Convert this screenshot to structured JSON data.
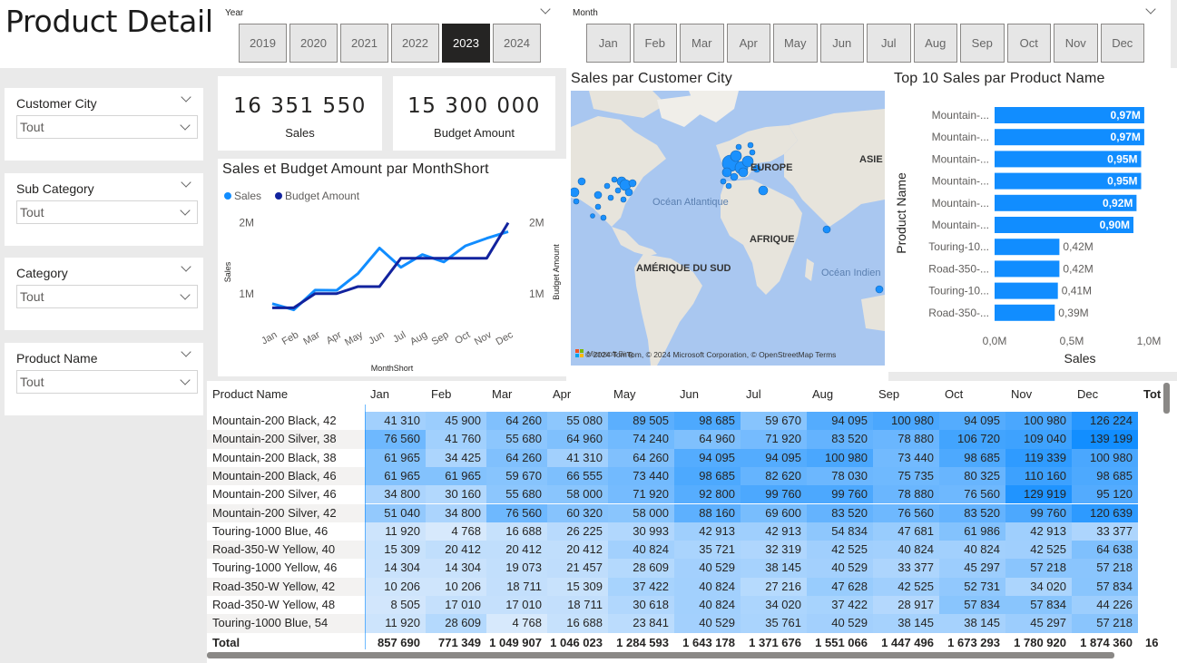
{
  "page": {
    "title": "Product Detail"
  },
  "year_slicer": {
    "title": "Year",
    "options": [
      "2019",
      "2020",
      "2021",
      "2022",
      "2023",
      "2024"
    ],
    "selected": "2023"
  },
  "month_slicer": {
    "title": "Month",
    "options": [
      "Jan",
      "Feb",
      "Mar",
      "Apr",
      "May",
      "Jun",
      "Jul",
      "Aug",
      "Sep",
      "Oct",
      "Nov",
      "Dec"
    ],
    "selected": ""
  },
  "filters": [
    {
      "label": "Customer City",
      "value": "Tout"
    },
    {
      "label": "Sub Category",
      "value": "Tout"
    },
    {
      "label": "Category",
      "value": "Tout"
    },
    {
      "label": "Product Name",
      "value": "Tout"
    }
  ],
  "kpis": [
    {
      "value": "16 351 550",
      "label": "Sales"
    },
    {
      "value": "15 300 000",
      "label": "Budget Amount"
    }
  ],
  "colors": {
    "sales": "#118dff",
    "budget": "#12239e",
    "selected_tile": "#252423",
    "bar": "#118dff"
  },
  "line_chart": {
    "title": "Sales et Budget Amount par MonthShort",
    "legend": [
      "Sales",
      "Budget Amount"
    ],
    "y_left_label": "Sales",
    "y_right_label": "Budget Amount",
    "x_label": "MonthShort",
    "y_ticks": [
      "2M",
      "1M"
    ],
    "y_ticks_right": [
      "2M",
      "1M"
    ]
  },
  "map": {
    "title": "Sales par Customer City",
    "labels": [
      "EUROPE",
      "ASIE",
      "AFRIQUE",
      "AMÉRIQUE DU SUD",
      "Océan Atlantique",
      "Océan Indien"
    ],
    "attribution": "© 2024 TomTom, © 2024 Microsoft Corporation, © OpenStreetMap  Terms",
    "brand": "Microsoft Bing"
  },
  "bar_chart": {
    "title": "Top 10 Sales par Product Name",
    "y_label": "Product Name",
    "x_label": "Sales",
    "x_ticks": [
      "0,0M",
      "0,5M",
      "1,0M"
    ],
    "value_labels": [
      "0,97M",
      "0,97M",
      "0,95M",
      "0,95M",
      "0,92M",
      "0,90M",
      "0,42M",
      "0,42M",
      "0,41M",
      "0,39M"
    ],
    "category_labels": [
      "Mountain-...",
      "Mountain-...",
      "Mountain-...",
      "Mountain-...",
      "Mountain-...",
      "Mountain-...",
      "Touring-10...",
      "Road-350-...",
      "Touring-10...",
      "Road-350-..."
    ]
  },
  "chart_data": [
    {
      "type": "line",
      "title": "Sales et Budget Amount par MonthShort",
      "xlabel": "MonthShort",
      "ylabel": "Sales",
      "ylabel_right": "Budget Amount",
      "categories": [
        "Jan",
        "Feb",
        "Mar",
        "Apr",
        "May",
        "Jun",
        "Jul",
        "Aug",
        "Sep",
        "Oct",
        "Nov",
        "Dec"
      ],
      "series": [
        {
          "name": "Sales",
          "values": [
            857690,
            771349,
            1049907,
            1046023,
            1284593,
            1643178,
            1371676,
            1551066,
            1447496,
            1673293,
            1780920,
            1874360
          ]
        },
        {
          "name": "Budget Amount",
          "values": [
            800000,
            800000,
            1000000,
            1000000,
            1100000,
            1100000,
            1500000,
            1500000,
            1500000,
            1500000,
            1500000,
            2000000
          ]
        }
      ],
      "ylim": [
        600000,
        2200000
      ],
      "legend_position": "top-left"
    },
    {
      "type": "bar",
      "title": "Top 10 Sales par Product Name",
      "xlabel": "Sales",
      "ylabel": "Product Name",
      "categories": [
        "Mountain-...",
        "Mountain-...",
        "Mountain-...",
        "Mountain-...",
        "Mountain-...",
        "Mountain-...",
        "Touring-10...",
        "Road-350-...",
        "Touring-10...",
        "Road-350-..."
      ],
      "values": [
        0.97,
        0.97,
        0.95,
        0.95,
        0.92,
        0.9,
        0.42,
        0.42,
        0.41,
        0.39
      ],
      "unit": "M",
      "xlim": [
        0,
        1.0
      ]
    }
  ],
  "table": {
    "columns": [
      "Product Name",
      "Jan",
      "Feb",
      "Mar",
      "Apr",
      "May",
      "Jun",
      "Jul",
      "Aug",
      "Sep",
      "Oct",
      "Nov",
      "Dec",
      "Tot"
    ],
    "rows": [
      {
        "name": "Mountain-200 Black, 42",
        "values": [
          "41 310",
          "45 900",
          "64 260",
          "55 080",
          "89 505",
          "98 685",
          "59 670",
          "94 095",
          "100 980",
          "94 095",
          "100 980",
          "126 224"
        ]
      },
      {
        "name": "Mountain-200 Silver, 38",
        "values": [
          "76 560",
          "41 760",
          "55 680",
          "64 960",
          "74 240",
          "64 960",
          "71 920",
          "83 520",
          "78 880",
          "106 720",
          "109 040",
          "139 199"
        ]
      },
      {
        "name": "Mountain-200 Black, 38",
        "values": [
          "61 965",
          "34 425",
          "64 260",
          "41 310",
          "64 260",
          "94 095",
          "94 095",
          "100 980",
          "73 440",
          "98 685",
          "119 339",
          "100 980"
        ]
      },
      {
        "name": "Mountain-200 Black, 46",
        "values": [
          "61 965",
          "61 965",
          "59 670",
          "66 555",
          "73 440",
          "98 685",
          "82 620",
          "78 030",
          "75 735",
          "80 325",
          "110 160",
          "98 685"
        ]
      },
      {
        "name": "Mountain-200 Silver, 46",
        "values": [
          "34 800",
          "30 160",
          "55 680",
          "58 000",
          "71 920",
          "92 800",
          "99 760",
          "99 760",
          "78 880",
          "76 560",
          "129 919",
          "95 120"
        ]
      },
      {
        "name": "Mountain-200 Silver, 42",
        "values": [
          "51 040",
          "34 800",
          "76 560",
          "60 320",
          "58 000",
          "88 160",
          "69 600",
          "83 520",
          "76 560",
          "83 520",
          "99 760",
          "120 639"
        ]
      },
      {
        "name": "Touring-1000 Blue, 46",
        "values": [
          "11 920",
          "4 768",
          "16 688",
          "26 225",
          "30 993",
          "42 913",
          "42 913",
          "54 834",
          "47 681",
          "61 986",
          "42 913",
          "33 377"
        ]
      },
      {
        "name": "Road-350-W Yellow, 40",
        "values": [
          "15 309",
          "20 412",
          "20 412",
          "20 412",
          "40 824",
          "35 721",
          "32 319",
          "42 525",
          "40 824",
          "40 824",
          "42 525",
          "64 638"
        ]
      },
      {
        "name": "Touring-1000 Yellow, 46",
        "values": [
          "14 304",
          "14 304",
          "19 073",
          "21 457",
          "28 609",
          "40 529",
          "38 145",
          "40 529",
          "33 377",
          "45 297",
          "57 218",
          "57 218"
        ]
      },
      {
        "name": "Road-350-W Yellow, 42",
        "values": [
          "10 206",
          "10 206",
          "18 711",
          "15 309",
          "37 422",
          "40 824",
          "27 216",
          "47 628",
          "42 525",
          "52 731",
          "34 020",
          "57 834"
        ]
      },
      {
        "name": "Road-350-W Yellow, 48",
        "values": [
          "8 505",
          "17 010",
          "17 010",
          "18 711",
          "30 618",
          "40 824",
          "34 020",
          "37 422",
          "28 917",
          "57 834",
          "57 834",
          "44 226"
        ]
      },
      {
        "name": "Touring-1000 Blue, 54",
        "values": [
          "11 920",
          "28 609",
          "4 768",
          "16 688",
          "23 841",
          "40 529",
          "35 761",
          "40 529",
          "38 145",
          "38 145",
          "45 297",
          "57 218"
        ]
      }
    ],
    "total": {
      "name": "Total",
      "values": [
        "857 690",
        "771 349",
        "1 049 907",
        "1 046 023",
        "1 284 593",
        "1 643 178",
        "1 371 676",
        "1 551 066",
        "1 447 496",
        "1 673 293",
        "1 780 920",
        "1 874 360"
      ],
      "grand": "16"
    }
  }
}
